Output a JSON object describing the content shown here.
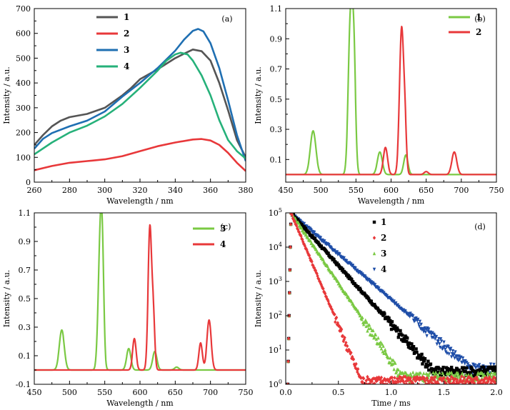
{
  "chart_data": [
    {
      "panel": "(a)",
      "type": "line",
      "xlabel": "Wavelength / nm",
      "ylabel": "Intensity / a.u.",
      "xlim": [
        260,
        380
      ],
      "ylim": [
        0,
        700
      ],
      "xticks": [
        260,
        280,
        300,
        320,
        340,
        360,
        380
      ],
      "yticks": [
        0,
        100,
        200,
        300,
        400,
        500,
        600,
        700
      ],
      "legend_position": "top-left",
      "series": [
        {
          "name": "1",
          "color": "#555555",
          "points": [
            [
              260,
              150
            ],
            [
              265,
              190
            ],
            [
              270,
              225
            ],
            [
              275,
              248
            ],
            [
              280,
              262
            ],
            [
              290,
              275
            ],
            [
              300,
              300
            ],
            [
              310,
              350
            ],
            [
              315,
              380
            ],
            [
              320,
              415
            ],
            [
              330,
              455
            ],
            [
              340,
              500
            ],
            [
              345,
              518
            ],
            [
              350,
              535
            ],
            [
              355,
              528
            ],
            [
              360,
              490
            ],
            [
              365,
              400
            ],
            [
              370,
              290
            ],
            [
              375,
              170
            ],
            [
              380,
              100
            ]
          ]
        },
        {
          "name": "2",
          "color": "#e8383a",
          "points": [
            [
              260,
              48
            ],
            [
              270,
              65
            ],
            [
              280,
              78
            ],
            [
              290,
              85
            ],
            [
              300,
              92
            ],
            [
              310,
              105
            ],
            [
              320,
              125
            ],
            [
              330,
              145
            ],
            [
              340,
              160
            ],
            [
              350,
              172
            ],
            [
              355,
              174
            ],
            [
              360,
              168
            ],
            [
              365,
              150
            ],
            [
              370,
              118
            ],
            [
              375,
              78
            ],
            [
              380,
              45
            ]
          ]
        },
        {
          "name": "3",
          "color": "#1f6fb2",
          "points": [
            [
              260,
              135
            ],
            [
              265,
              175
            ],
            [
              270,
              198
            ],
            [
              280,
              225
            ],
            [
              290,
              248
            ],
            [
              300,
              285
            ],
            [
              310,
              345
            ],
            [
              320,
              400
            ],
            [
              330,
              460
            ],
            [
              340,
              530
            ],
            [
              345,
              575
            ],
            [
              350,
              610
            ],
            [
              353,
              618
            ],
            [
              356,
              608
            ],
            [
              360,
              560
            ],
            [
              365,
              460
            ],
            [
              370,
              330
            ],
            [
              375,
              190
            ],
            [
              380,
              85
            ]
          ]
        },
        {
          "name": "4",
          "color": "#26b17a",
          "points": [
            [
              260,
              112
            ],
            [
              270,
              160
            ],
            [
              280,
              200
            ],
            [
              290,
              228
            ],
            [
              300,
              265
            ],
            [
              310,
              315
            ],
            [
              320,
              380
            ],
            [
              330,
              450
            ],
            [
              335,
              490
            ],
            [
              340,
              515
            ],
            [
              343,
              522
            ],
            [
              347,
              515
            ],
            [
              350,
              490
            ],
            [
              355,
              430
            ],
            [
              360,
              350
            ],
            [
              365,
              250
            ],
            [
              370,
              170
            ],
            [
              375,
              125
            ],
            [
              380,
              95
            ]
          ]
        }
      ]
    },
    {
      "panel": "(b)",
      "type": "line",
      "xlabel": "Wavelength / nm",
      "ylabel": "Intensity / a.u.",
      "xlim": [
        450,
        750
      ],
      "ylim": [
        -0.05,
        1.1
      ],
      "xticks": [
        450,
        500,
        550,
        600,
        650,
        700,
        750
      ],
      "yticks": [
        0.1,
        0.3,
        0.5,
        0.7,
        0.9,
        1.1
      ],
      "ytick_labels": [
        "0.1",
        "0.3",
        "0.5",
        "0.7",
        "0.9",
        "1.1"
      ],
      "legend_position": "top-right",
      "series": [
        {
          "name": "1",
          "color": "#7ac943",
          "peaks": [
            [
              489,
              0.29,
              4
            ],
            [
              542,
              1.0,
              3
            ],
            [
              547,
              0.75,
              2.5
            ],
            [
              584,
              0.15,
              3.5
            ],
            [
              621,
              0.13,
              3
            ]
          ]
        },
        {
          "name": "2",
          "color": "#e8383a",
          "peaks": [
            [
              592,
              0.18,
              3
            ],
            [
              615,
              0.97,
              3
            ],
            [
              620,
              0.25,
              2
            ],
            [
              650,
              0.02,
              3
            ],
            [
              690,
              0.15,
              3.5
            ]
          ]
        }
      ]
    },
    {
      "panel": "(c)",
      "type": "line",
      "xlabel": "Wavelength / nm",
      "ylabel": "Intensity / a.u.",
      "xlim": [
        450,
        750
      ],
      "ylim": [
        -0.1,
        1.1
      ],
      "xticks": [
        450,
        500,
        550,
        600,
        650,
        700,
        750
      ],
      "yticks": [
        -0.1,
        0.1,
        0.3,
        0.5,
        0.7,
        0.9,
        1.1
      ],
      "ytick_labels": [
        "-0.1",
        "0.1",
        "0.3",
        "0.5",
        "0.7",
        "0.9",
        "1.1"
      ],
      "legend_position": "top-right",
      "series": [
        {
          "name": "3",
          "color": "#7ac943",
          "peaks": [
            [
              489,
              0.28,
              3.5
            ],
            [
              544,
              1.0,
              3
            ],
            [
              547,
              0.35,
              2
            ],
            [
              584,
              0.15,
              3
            ],
            [
              621,
              0.13,
              3
            ],
            [
              652,
              0.02,
              3
            ]
          ]
        },
        {
          "name": "4",
          "color": "#e8383a",
          "peaks": [
            [
              592,
              0.22,
              2.5
            ],
            [
              614,
              1.0,
              2.5
            ],
            [
              619,
              0.36,
              2
            ],
            [
              686,
              0.19,
              2.5
            ],
            [
              698,
              0.35,
              3
            ]
          ]
        }
      ]
    },
    {
      "panel": "(d)",
      "type": "scatter",
      "xlabel": "Time / ms",
      "ylabel": "Intensity / a.u.",
      "yscale": "log",
      "xlim": [
        0,
        2.0
      ],
      "ylim": [
        1,
        100000
      ],
      "xticks": [
        0.0,
        0.5,
        1.0,
        1.5,
        2.0
      ],
      "xtick_labels": [
        "0.0",
        "0.5",
        "1.0",
        "1.5",
        "2.0"
      ],
      "yticks": [
        1,
        10,
        100,
        1000,
        10000,
        100000
      ],
      "ytick_labels": [
        "10⁰",
        "10¹",
        "10²",
        "10³",
        "10⁴",
        "10⁵"
      ],
      "legend_position": "top-right",
      "series": [
        {
          "name": "1",
          "color": "#000000",
          "marker": "square",
          "peak_time": 0.05,
          "decay_end": 1.4,
          "floor": 2.5
        },
        {
          "name": "2",
          "color": "#e8383a",
          "marker": "diamond",
          "peak_time": 0.05,
          "decay_end": 0.72,
          "floor": 1.3
        },
        {
          "name": "3",
          "color": "#7ac943",
          "marker": "triangle",
          "peak_time": 0.05,
          "decay_end": 1.1,
          "floor": 1.7
        },
        {
          "name": "4",
          "color": "#1f4ea8",
          "marker": "triangle-down",
          "peak_time": 0.05,
          "decay_end": 1.75,
          "floor": 3.0
        }
      ]
    }
  ]
}
